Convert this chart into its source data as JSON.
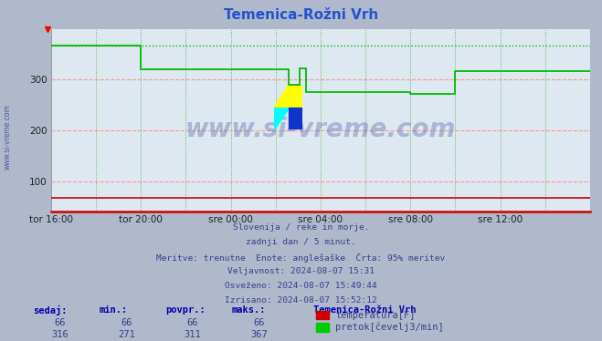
{
  "title": "Temenica-Rožni Vrh",
  "title_color": "#2255cc",
  "bg_color": "#b0b8cc",
  "plot_bg_color": "#dde8f0",
  "xlim": [
    0,
    288
  ],
  "ylim": [
    40,
    400
  ],
  "yticks": [
    100,
    200,
    300
  ],
  "xtick_labels": [
    "tor 16:00",
    "tor 20:00",
    "sre 00:00",
    "sre 04:00",
    "sre 08:00",
    "sre 12:00"
  ],
  "xtick_positions": [
    0,
    48,
    96,
    144,
    192,
    240
  ],
  "grid_h_color": "#ff9999",
  "grid_h_style": "--",
  "grid_v_color": "#44aa44",
  "grid_v_style": ":",
  "axis_color": "#cc0000",
  "temp_color": "#cc0000",
  "flow_color": "#00bb00",
  "watermark_text": "www.si-vreme.com",
  "watermark_color": "#334499",
  "watermark_alpha": 0.3,
  "flow_x": [
    0,
    48,
    48,
    127,
    127,
    133,
    133,
    136,
    136,
    139,
    139,
    192,
    192,
    216,
    216,
    288
  ],
  "flow_y": [
    367,
    367,
    320,
    320,
    290,
    290,
    323,
    323,
    275,
    275,
    275,
    275,
    271,
    271,
    316,
    316
  ],
  "flow_max_y": 367,
  "temp_y": 66,
  "subtitle_lines": [
    "Slovenija / reke in morje.",
    "zadnji dan / 5 minut.",
    "Meritve: trenutne  Enote: anglešaške  Črta: 95% meritev",
    "Veljavnost: 2024-08-07 15:31",
    "Osveženo: 2024-08-07 15:49:44",
    "Izrisano: 2024-08-07 15:52:12"
  ],
  "table_headers": [
    "sedaj:",
    "min.:",
    "povpr.:",
    "maks.:"
  ],
  "table_row1": [
    66,
    66,
    66,
    66
  ],
  "table_row2": [
    316,
    271,
    311,
    367
  ],
  "legend_label1": "temperatura[F]",
  "legend_label2": "pretok[čevelj3/min]",
  "legend_color1": "#cc0000",
  "legend_color2": "#00cc00",
  "station_name": "Temenica-Rožni Vrh",
  "figsize": [
    6.59,
    3.74
  ],
  "dpi": 100
}
